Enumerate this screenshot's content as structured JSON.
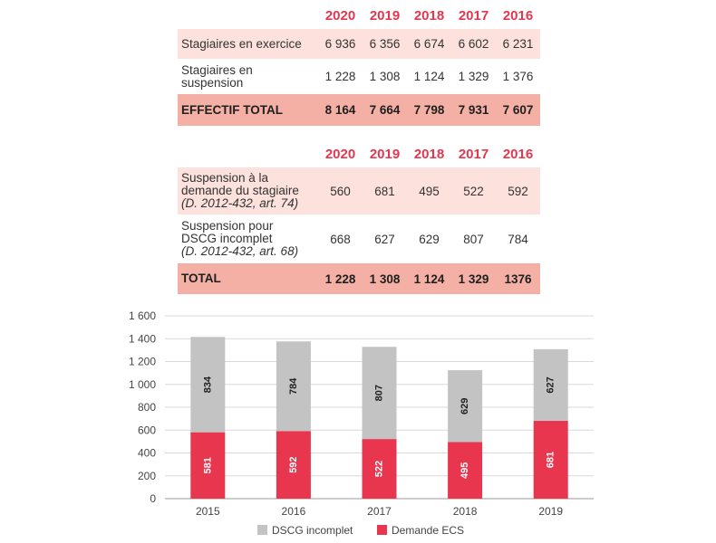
{
  "colors": {
    "accent": "#e4364f",
    "row_light": "#fce1dc",
    "row_total": "#f4b0a5",
    "bar_gray": "#c3c3c3",
    "bar_red": "#e8364e"
  },
  "table1": {
    "years": [
      "2020",
      "2019",
      "2018",
      "2017",
      "2016"
    ],
    "rows": [
      {
        "label_lines": [
          "Stagiaires en exercice"
        ],
        "values": [
          "6 936",
          "6 356",
          "6 674",
          "6 602",
          "6 231"
        ]
      },
      {
        "label_lines": [
          "Stagiaires en",
          "suspension"
        ],
        "values": [
          "1 228",
          "1 308",
          "1 124",
          "1 329",
          "1 376"
        ]
      }
    ],
    "total": {
      "label": "EFFECTIF TOTAL",
      "values": [
        "8 164",
        "7 664",
        "7 798",
        "7 931",
        "7 607"
      ]
    }
  },
  "table2": {
    "years": [
      "2020",
      "2019",
      "2018",
      "2017",
      "2016"
    ],
    "rows": [
      {
        "label_lines": [
          "Suspension à la",
          "demande du stagiaire"
        ],
        "ref": "(D. 2012-432, art. 74)",
        "values": [
          "560",
          "681",
          "495",
          "522",
          "592"
        ]
      },
      {
        "label_lines": [
          "Suspension pour",
          "DSCG incomplet"
        ],
        "ref": "(D. 2012-432, art. 68)",
        "values": [
          "668",
          "627",
          "629",
          "807",
          "784"
        ]
      }
    ],
    "total": {
      "label": "TOTAL",
      "values": [
        "1 228",
        "1 308",
        "1 124",
        "1 329",
        "1376"
      ]
    }
  },
  "chart_data": {
    "type": "bar",
    "stacked": true,
    "categories": [
      "2015",
      "2016",
      "2017",
      "2018",
      "2019"
    ],
    "series": [
      {
        "name": "Demande ECS",
        "color": "#e8364e",
        "values": [
          581,
          592,
          522,
          495,
          681
        ]
      },
      {
        "name": "DSCG incomplet",
        "color": "#c3c3c3",
        "values": [
          834,
          784,
          807,
          629,
          627
        ]
      }
    ],
    "ylim": [
      0,
      1600
    ],
    "yticks": [
      0,
      200,
      400,
      600,
      800,
      1000,
      1200,
      1400,
      1600
    ],
    "ytick_labels": [
      "0",
      "200",
      "400",
      "600",
      "800",
      "1 000",
      "1 200",
      "1 400",
      "1 600"
    ],
    "legend": [
      "DSCG incomplet",
      "Demande ECS"
    ],
    "legend_position": "bottom",
    "grid": true,
    "title": "",
    "xlabel": "",
    "ylabel": ""
  }
}
